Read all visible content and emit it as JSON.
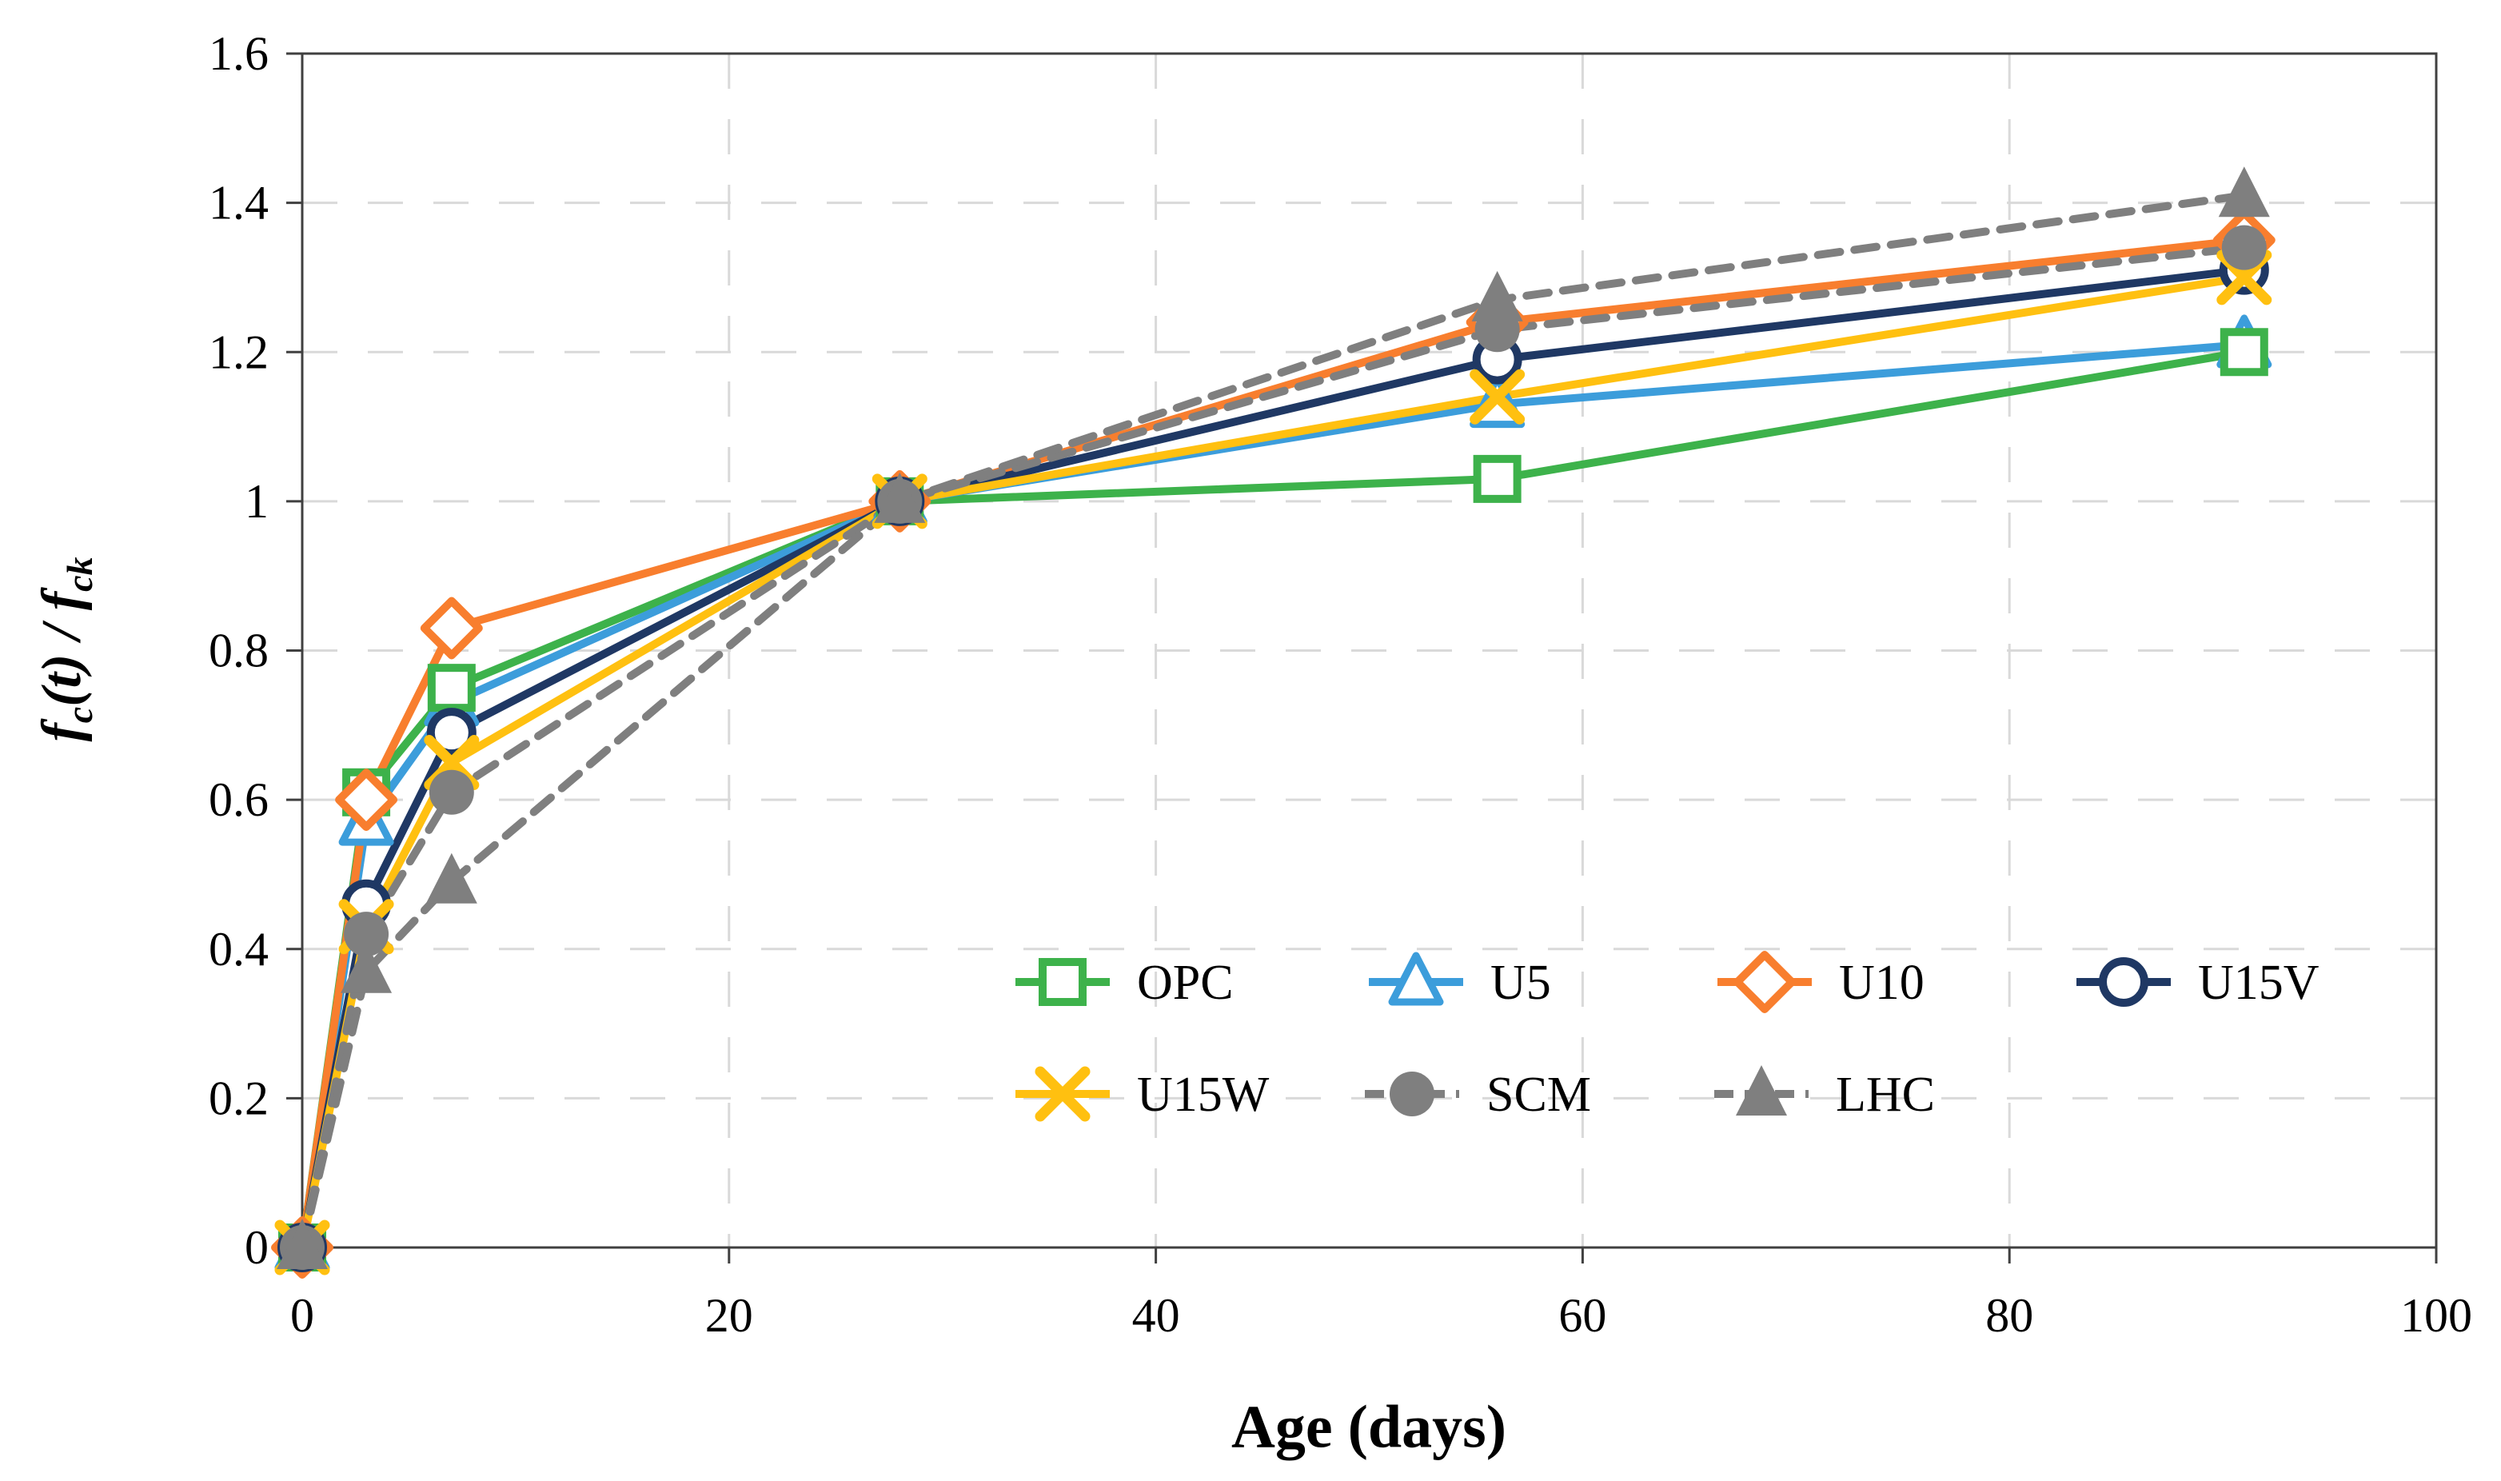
{
  "chart_data": {
    "type": "line",
    "title": "",
    "xlabel": "Age (days)",
    "ylabel": "fc(t) / fck",
    "ylabel_rich": [
      {
        "text": "f",
        "sub": "c"
      },
      {
        "text": "(t) / "
      },
      {
        "text": "f",
        "sub": "ck"
      }
    ],
    "x": [
      0,
      3,
      7,
      28,
      56,
      91
    ],
    "xlim": [
      0,
      100
    ],
    "ylim": [
      0,
      1.6
    ],
    "xticks": [
      0,
      20,
      40,
      60,
      80,
      100
    ],
    "yticks": [
      "0",
      "0.2",
      "0.4",
      "0.6",
      "0.8",
      "1",
      "1.2",
      "1.4",
      "1.6"
    ],
    "grid": "dashed",
    "legend_position": "inside-lower-right",
    "legend_rows": [
      [
        "OPC",
        "U5",
        "U10",
        "U15V"
      ],
      [
        "U15W",
        "SCM",
        "LHC"
      ]
    ],
    "series": [
      {
        "name": "OPC",
        "color": "#3DB24B",
        "marker": "square-open",
        "line": "solid",
        "values": [
          0,
          0.61,
          0.75,
          1.0,
          1.03,
          1.2
        ]
      },
      {
        "name": "U5",
        "color": "#3C9DDB",
        "marker": "triangle-open",
        "line": "solid",
        "values": [
          0,
          0.57,
          0.73,
          1.0,
          1.13,
          1.21
        ]
      },
      {
        "name": "U10",
        "color": "#F87E2E",
        "marker": "diamond-open",
        "line": "solid",
        "values": [
          0,
          0.6,
          0.83,
          1.0,
          1.24,
          1.35
        ]
      },
      {
        "name": "U15V",
        "color": "#1F3864",
        "marker": "circle-open",
        "line": "solid",
        "values": [
          0,
          0.46,
          0.69,
          1.0,
          1.19,
          1.31
        ]
      },
      {
        "name": "U15W",
        "color": "#FFC010",
        "marker": "x",
        "line": "solid",
        "values": [
          0,
          0.43,
          0.65,
          1.0,
          1.14,
          1.3
        ]
      },
      {
        "name": "SCM",
        "color": "#7F7F7F",
        "marker": "circle-filled",
        "line": "dashed",
        "values": [
          0,
          0.42,
          0.61,
          1.0,
          1.23,
          1.34
        ]
      },
      {
        "name": "LHC",
        "color": "#7F7F7F",
        "marker": "triangle-filled",
        "line": "dashed",
        "values": [
          0,
          0.37,
          0.49,
          1.0,
          1.27,
          1.41
        ]
      }
    ],
    "colors": {
      "gridline": "#D9D9D9",
      "axis": "#404040",
      "text": "#000000"
    }
  }
}
